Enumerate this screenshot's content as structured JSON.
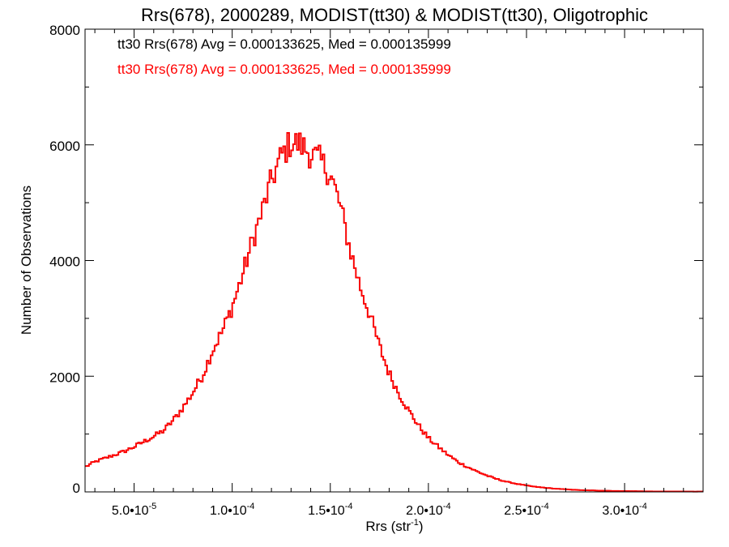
{
  "chart_data": {
    "type": "line",
    "style": "histogram-step",
    "title": "Rrs(678), 2000289, MODIST(tt30) & MODIST(tt30), Oligotrophic",
    "xlabel": "Rrs (str",
    "xlabel_superscript": "-1",
    "xlabel_suffix": ")",
    "ylabel": "Number of Observations",
    "xlim": [
      2.5e-05,
      0.00034
    ],
    "ylim": [
      0,
      8000
    ],
    "grid": false,
    "legend_position": "top-left",
    "xticks": [
      {
        "value": 5e-05,
        "mantissa": "5.0",
        "exponent": "-5"
      },
      {
        "value": 0.0001,
        "mantissa": "1.0",
        "exponent": "-4"
      },
      {
        "value": 0.00015,
        "mantissa": "1.5",
        "exponent": "-4"
      },
      {
        "value": 0.0002,
        "mantissa": "2.0",
        "exponent": "-4"
      },
      {
        "value": 0.00025,
        "mantissa": "2.5",
        "exponent": "-4"
      },
      {
        "value": 0.0003,
        "mantissa": "3.0",
        "exponent": "-4"
      }
    ],
    "yticks": [
      {
        "value": 0,
        "label": "0"
      },
      {
        "value": 2000,
        "label": "2000"
      },
      {
        "value": 4000,
        "label": "4000"
      },
      {
        "value": 6000,
        "label": "6000"
      },
      {
        "value": 8000,
        "label": "8000"
      }
    ],
    "bin_width": 1e-06,
    "series": [
      {
        "name": "tt30 Rrs(678) Avg = 0.000133625, Med = 0.000135999",
        "color": "#000000",
        "x": [
          2.5e-05,
          3e-05,
          3.5e-05,
          4e-05,
          4.5e-05,
          5e-05,
          5.5e-05,
          6e-05,
          6.5e-05,
          7e-05,
          7.5e-05,
          8e-05,
          8.5e-05,
          9e-05,
          9.5e-05,
          0.0001,
          0.000105,
          0.00011,
          0.000115,
          0.00012,
          0.000125,
          0.00013,
          0.000135,
          0.00014,
          0.000145,
          0.00015,
          0.000155,
          0.00016,
          0.000165,
          0.00017,
          0.000175,
          0.00018,
          0.000185,
          0.00019,
          0.000195,
          0.0002,
          0.000205,
          0.00021,
          0.000215,
          0.00022,
          0.000225,
          0.00023,
          0.000235,
          0.00024,
          0.000245,
          0.00025,
          0.000255,
          0.00026,
          0.000265,
          0.00027,
          0.000275,
          0.00028,
          0.000285,
          0.00029,
          0.000295,
          0.0003,
          0.000305,
          0.00031,
          0.000315,
          0.00032,
          0.000325,
          0.00033,
          0.000335,
          0.00034
        ],
        "y": [
          430,
          520,
          580,
          640,
          700,
          780,
          870,
          960,
          1060,
          1240,
          1460,
          1720,
          2020,
          2450,
          2780,
          3200,
          3720,
          4300,
          4820,
          5380,
          5800,
          6050,
          6000,
          5850,
          5720,
          5500,
          4950,
          4200,
          3580,
          3080,
          2520,
          2050,
          1700,
          1400,
          1150,
          930,
          780,
          640,
          520,
          430,
          350,
          280,
          220,
          175,
          140,
          110,
          85,
          70,
          55,
          45,
          35,
          28,
          24,
          20,
          17,
          14,
          12,
          10,
          9,
          8,
          7,
          6,
          5,
          5
        ]
      },
      {
        "name": "tt30 Rrs(678) Avg = 0.000133625, Med = 0.000135999",
        "color": "#ff0000",
        "x": [
          2.5e-05,
          3e-05,
          3.5e-05,
          4e-05,
          4.5e-05,
          5e-05,
          5.5e-05,
          6e-05,
          6.5e-05,
          7e-05,
          7.5e-05,
          8e-05,
          8.5e-05,
          9e-05,
          9.5e-05,
          0.0001,
          0.000105,
          0.00011,
          0.000115,
          0.00012,
          0.000125,
          0.00013,
          0.000135,
          0.00014,
          0.000145,
          0.00015,
          0.000155,
          0.00016,
          0.000165,
          0.00017,
          0.000175,
          0.00018,
          0.000185,
          0.00019,
          0.000195,
          0.0002,
          0.000205,
          0.00021,
          0.000215,
          0.00022,
          0.000225,
          0.00023,
          0.000235,
          0.00024,
          0.000245,
          0.00025,
          0.000255,
          0.00026,
          0.000265,
          0.00027,
          0.000275,
          0.00028,
          0.000285,
          0.00029,
          0.000295,
          0.0003,
          0.000305,
          0.00031,
          0.000315,
          0.00032,
          0.000325,
          0.00033,
          0.000335,
          0.00034
        ],
        "y": [
          430,
          520,
          580,
          640,
          700,
          780,
          870,
          960,
          1060,
          1240,
          1460,
          1720,
          2020,
          2450,
          2780,
          3200,
          3720,
          4300,
          4820,
          5380,
          5800,
          6050,
          6000,
          5850,
          5720,
          5500,
          4950,
          4200,
          3580,
          3080,
          2520,
          2050,
          1700,
          1400,
          1150,
          930,
          780,
          640,
          520,
          430,
          350,
          280,
          220,
          175,
          140,
          110,
          85,
          70,
          55,
          45,
          35,
          28,
          24,
          20,
          17,
          14,
          12,
          10,
          9,
          8,
          7,
          6,
          5,
          5
        ]
      }
    ]
  }
}
